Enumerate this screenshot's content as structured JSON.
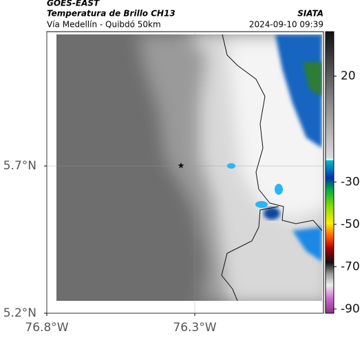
{
  "header": {
    "satellite": "GOES-EAST",
    "product": "Temperatura de Brillo CH13",
    "source": "SIATA",
    "route": "Vía Medellín - Quibdó 50km",
    "datetime": "2024-09-10 09:39"
  },
  "map": {
    "xlim": [
      -76.8,
      -75.865
    ],
    "ylim": [
      5.2,
      6.156
    ],
    "xticks": [
      {
        "value": -76.8,
        "label": "76.8°W"
      },
      {
        "value": -76.3,
        "label": "76.3°W"
      }
    ],
    "yticks": [
      {
        "value": 5.7,
        "label": "5.7°N"
      },
      {
        "value": 5.2,
        "label": "5.2°N"
      }
    ]
  },
  "colorbar": {
    "lim": [
      41,
      -92
    ],
    "ticks": [
      20,
      -30,
      -50,
      -70,
      -90
    ]
  }
}
